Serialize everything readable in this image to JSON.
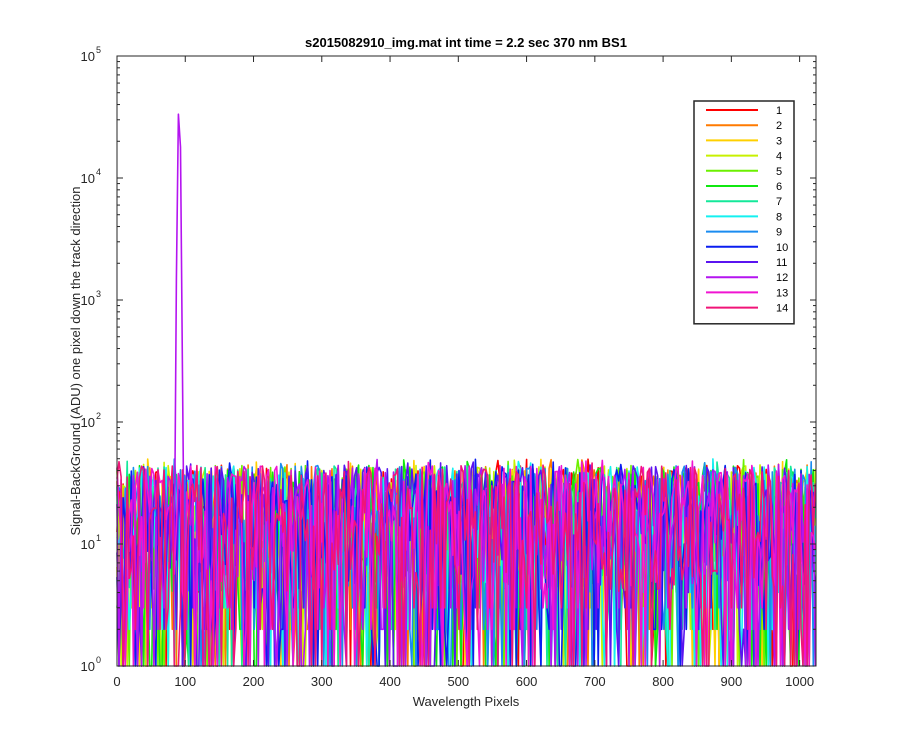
{
  "chart_data": {
    "type": "line",
    "title": "s2015082910_img.mat int time = 2.2 sec  370 nm BS1",
    "xlabel": "Wavelength Pixels",
    "ylabel": "Signal-BackGround (ADU) one pixel down the track direction",
    "xlim": [
      0,
      1024
    ],
    "ylim": [
      1,
      100000
    ],
    "yscale": "log",
    "xticks": [
      0,
      100,
      200,
      300,
      400,
      500,
      600,
      700,
      800,
      900,
      1000
    ],
    "yticks": [
      1,
      10,
      100,
      1000,
      10000,
      100000
    ],
    "ytick_labels": [
      {
        "base": "10",
        "exp": "0"
      },
      {
        "base": "10",
        "exp": "1"
      },
      {
        "base": "10",
        "exp": "2"
      },
      {
        "base": "10",
        "exp": "3"
      },
      {
        "base": "10",
        "exp": "4"
      },
      {
        "base": "10",
        "exp": "5"
      }
    ],
    "grid": false,
    "legend_position": "top-right",
    "noise_floor_range": [
      1,
      50
    ],
    "peak": {
      "x": 91,
      "y": 41000,
      "series": "12"
    },
    "series": [
      {
        "name": "1",
        "color": "#ff0000"
      },
      {
        "name": "2",
        "color": "#ff7a00"
      },
      {
        "name": "3",
        "color": "#ffd000"
      },
      {
        "name": "4",
        "color": "#c8f000"
      },
      {
        "name": "5",
        "color": "#6cf000"
      },
      {
        "name": "6",
        "color": "#10e810"
      },
      {
        "name": "7",
        "color": "#14e89a"
      },
      {
        "name": "8",
        "color": "#14f0f0"
      },
      {
        "name": "9",
        "color": "#1a8cf0"
      },
      {
        "name": "10",
        "color": "#0a1ef0"
      },
      {
        "name": "11",
        "color": "#5a14f0"
      },
      {
        "name": "12",
        "color": "#b414f0"
      },
      {
        "name": "13",
        "color": "#f014d2"
      },
      {
        "name": "14",
        "color": "#f01478"
      }
    ]
  }
}
